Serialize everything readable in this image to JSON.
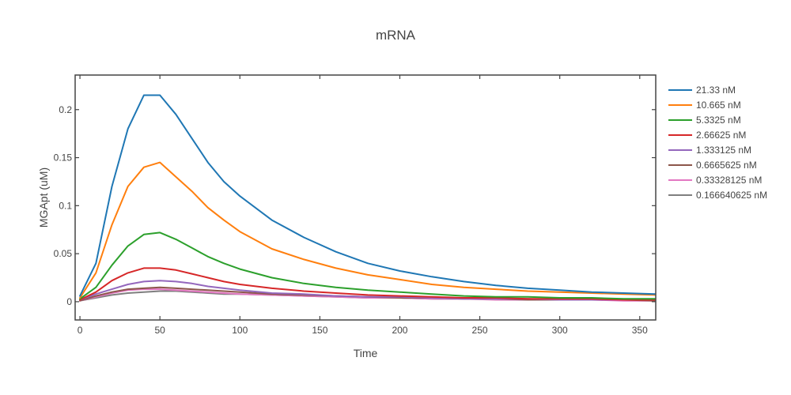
{
  "chart_data": {
    "type": "line",
    "title": "mRNA",
    "xlabel": "Time",
    "ylabel": "MGApt (uM)",
    "xlim": [
      -3,
      360
    ],
    "ylim": [
      -0.019,
      0.236
    ],
    "x_ticks": [
      0,
      50,
      100,
      150,
      200,
      250,
      300,
      350
    ],
    "x_tick_labels": [
      "0",
      "50",
      "100",
      "150",
      "200",
      "250",
      "300",
      "350"
    ],
    "y_ticks": [
      0,
      0.05,
      0.1,
      0.15,
      0.2
    ],
    "y_tick_labels": [
      "0",
      "0.05",
      "0.1",
      "0.15",
      "0.2"
    ],
    "grid": false,
    "legend_position": "right",
    "x": [
      0,
      10,
      20,
      30,
      40,
      50,
      60,
      70,
      80,
      90,
      100,
      120,
      140,
      160,
      180,
      200,
      220,
      240,
      260,
      280,
      300,
      320,
      340,
      360
    ],
    "series": [
      {
        "name": "21.33 nM",
        "color": "#1f77b4",
        "values": [
          0.006,
          0.04,
          0.12,
          0.18,
          0.215,
          0.215,
          0.195,
          0.17,
          0.145,
          0.125,
          0.11,
          0.085,
          0.067,
          0.052,
          0.04,
          0.032,
          0.026,
          0.021,
          0.017,
          0.014,
          0.012,
          0.01,
          0.009,
          0.008
        ]
      },
      {
        "name": "10.665 nM",
        "color": "#ff7f0e",
        "values": [
          0.004,
          0.03,
          0.08,
          0.12,
          0.14,
          0.145,
          0.13,
          0.115,
          0.098,
          0.085,
          0.073,
          0.055,
          0.044,
          0.035,
          0.028,
          0.023,
          0.018,
          0.015,
          0.013,
          0.011,
          0.01,
          0.009,
          0.008,
          0.007
        ]
      },
      {
        "name": "5.3325 nM",
        "color": "#2ca02c",
        "values": [
          0.003,
          0.015,
          0.038,
          0.058,
          0.07,
          0.072,
          0.065,
          0.056,
          0.047,
          0.04,
          0.034,
          0.025,
          0.019,
          0.015,
          0.012,
          0.01,
          0.008,
          0.006,
          0.005,
          0.005,
          0.004,
          0.004,
          0.003,
          0.003
        ]
      },
      {
        "name": "2.66625 nM",
        "color": "#d62728",
        "values": [
          0.002,
          0.01,
          0.022,
          0.03,
          0.035,
          0.035,
          0.033,
          0.029,
          0.025,
          0.021,
          0.018,
          0.014,
          0.011,
          0.009,
          0.007,
          0.006,
          0.005,
          0.004,
          0.004,
          0.003,
          0.003,
          0.003,
          0.002,
          0.002
        ]
      },
      {
        "name": "1.333125 nM",
        "color": "#9467bd",
        "values": [
          0.002,
          0.008,
          0.013,
          0.018,
          0.021,
          0.022,
          0.021,
          0.019,
          0.016,
          0.014,
          0.012,
          0.009,
          0.008,
          0.006,
          0.005,
          0.005,
          0.004,
          0.003,
          0.003,
          0.003,
          0.002,
          0.002,
          0.002,
          0.002
        ]
      },
      {
        "name": "0.6665625 nM",
        "color": "#8c564b",
        "values": [
          0.001,
          0.006,
          0.01,
          0.013,
          0.014,
          0.015,
          0.014,
          0.013,
          0.012,
          0.011,
          0.01,
          0.008,
          0.007,
          0.006,
          0.005,
          0.004,
          0.004,
          0.003,
          0.003,
          0.002,
          0.002,
          0.002,
          0.002,
          0.001
        ]
      },
      {
        "name": "0.33328125 nM",
        "color": "#e377c2",
        "values": [
          0.001,
          0.005,
          0.009,
          0.012,
          0.013,
          0.013,
          0.012,
          0.011,
          0.01,
          0.009,
          0.008,
          0.007,
          0.006,
          0.005,
          0.004,
          0.004,
          0.003,
          0.003,
          0.002,
          0.002,
          0.002,
          0.002,
          0.001,
          0.001
        ]
      },
      {
        "name": "0.166640625 nM",
        "color": "#7f7f7f",
        "values": [
          0.001,
          0.004,
          0.007,
          0.009,
          0.01,
          0.011,
          0.011,
          0.01,
          0.009,
          0.008,
          0.008,
          0.007,
          0.006,
          0.005,
          0.004,
          0.004,
          0.003,
          0.003,
          0.003,
          0.002,
          0.002,
          0.002,
          0.002,
          0.001
        ]
      }
    ]
  }
}
